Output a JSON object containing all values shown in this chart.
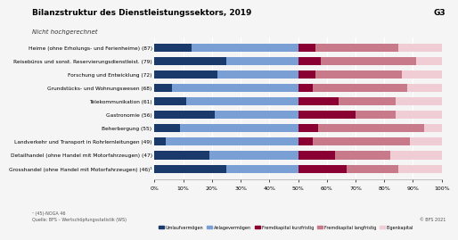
{
  "title": "Bilanzstruktur des Dienstleistungssektors, 2019",
  "title_right": "G3",
  "subtitle": "Nicht hochgerechnet",
  "categories": [
    "Heime (ohne Erholungs- und Ferienheime) (87)",
    "Reisebüros und sonst. Reservierungsdienstleist. (79)",
    "Forschung und Entwicklung (72)",
    "Grundstücks- und Wohnungswesen (68)",
    "Telekommunikation (61)",
    "Gastronomie (56)",
    "Beherbergung (55)",
    "Landverkehr und Transport in Rohrlernleitungen (49)",
    "Detailhandel (ohne Handel mit Motorfahrzeugen) (47)",
    "Grosshandel (ohne Handel mit Motorfahrzeugen) (46)¹"
  ],
  "segments": {
    "Umlaufvermögen": [
      13,
      25,
      22,
      6,
      11,
      21,
      9,
      4,
      19,
      25
    ],
    "Anlagevermögen": [
      37,
      25,
      28,
      44,
      39,
      29,
      41,
      46,
      31,
      25
    ],
    "Fremdkapital kurzfristig": [
      6,
      8,
      6,
      5,
      14,
      20,
      7,
      5,
      13,
      17
    ],
    "Fremdkapital langfristig": [
      29,
      33,
      30,
      33,
      20,
      14,
      37,
      34,
      19,
      18
    ],
    "Eigenkapital": [
      15,
      9,
      14,
      12,
      16,
      16,
      6,
      11,
      18,
      15
    ]
  },
  "colors": {
    "Umlaufvermögen": "#1a3a6b",
    "Anlagevermögen": "#7a9fd4",
    "Fremdkapital kurzfristig": "#8b0033",
    "Fremdkapital langfristig": "#c97a8a",
    "Eigenkapital": "#f0cdd4"
  },
  "footnote": "¹ (45)-NOGA 46",
  "source": "Quelle: BFS – Wertschöpfungsstatistik (WS)",
  "copyright": "© BFS 2021",
  "xlabel_ticks": [
    0,
    10,
    20,
    30,
    40,
    50,
    60,
    70,
    80,
    90,
    100
  ],
  "background_color": "#f5f5f5"
}
